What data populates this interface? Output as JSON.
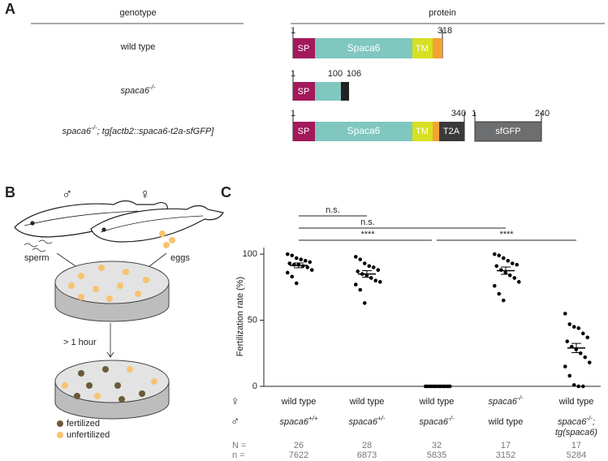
{
  "panel_labels": [
    "A",
    "B",
    "C"
  ],
  "panel_a": {
    "headers": [
      "genotype",
      "protein"
    ],
    "rows": [
      {
        "genotype": [
          {
            "t": "wild type"
          }
        ],
        "positions": [
          "1",
          "318"
        ],
        "segments": [
          "SP",
          "Spaca6",
          "TM"
        ]
      },
      {
        "genotype": [
          {
            "t": "spaca6",
            "i": true
          },
          {
            "t": "-/-",
            "i": true,
            "sup": true
          }
        ],
        "positions": [
          "1",
          "100",
          "106"
        ],
        "segments": [
          "SP"
        ]
      },
      {
        "genotype": [
          {
            "t": "spaca6",
            "i": true
          },
          {
            "t": "-/-",
            "i": true,
            "sup": true
          },
          {
            "t": "; tg[actb2::spaca6-t2a-sfGFP]",
            "i": true
          }
        ],
        "positions": [
          "1",
          "340",
          "1",
          "240"
        ],
        "segments": [
          "SP",
          "Spaca6",
          "TM",
          "T2A",
          "sfGFP"
        ]
      }
    ]
  },
  "panel_b": {
    "male": "♂",
    "female": "♀",
    "sperm": "sperm",
    "eggs": "eggs",
    "time": "> 1 hour",
    "legend": [
      "fertilized",
      "unfertilized"
    ]
  },
  "chart_data": {
    "type": "dot",
    "y_label": "Fertilization rate (%)",
    "ylim": [
      0,
      105
    ],
    "yticks": [
      0,
      50,
      100
    ],
    "color": "#000000",
    "series": [
      {
        "points": [
          100,
          99,
          97,
          96,
          95,
          94,
          93,
          92,
          92,
          91,
          90,
          88,
          86,
          83,
          78
        ],
        "mean": 91.5,
        "error": 1.8
      },
      {
        "points": [
          98,
          96,
          93,
          91,
          90,
          88,
          87,
          85,
          84,
          82,
          80,
          79,
          77,
          73,
          63
        ],
        "mean": 85,
        "error": 2.5
      },
      {
        "points": [
          0,
          0,
          0,
          0,
          0,
          0,
          0,
          0,
          0,
          0,
          0,
          0
        ],
        "mean": 0,
        "error": 0
      },
      {
        "points": [
          100,
          99,
          97,
          95,
          93,
          92,
          91,
          88,
          86,
          84,
          82,
          79,
          76,
          70,
          65
        ],
        "mean": 87.5,
        "error": 2.8
      },
      {
        "points": [
          55,
          47,
          45,
          44,
          40,
          37,
          34,
          30,
          28,
          25,
          22,
          18,
          15,
          8,
          1,
          0,
          0
        ],
        "mean": 29,
        "error": 3.5
      }
    ],
    "female_symbol": "♀",
    "male_symbol": "♂",
    "female_labels": [
      [
        {
          "t": "wild type"
        }
      ],
      [
        {
          "t": "wild type"
        }
      ],
      [
        {
          "t": "wild type"
        }
      ],
      [
        {
          "t": "spaca6",
          "i": true
        },
        {
          "t": "-/-",
          "i": true,
          "sup": true
        }
      ],
      [
        {
          "t": "wild type"
        }
      ]
    ],
    "male_labels": [
      [
        [
          {
            "t": "spaca6",
            "i": true
          },
          {
            "t": "+/+",
            "i": true,
            "sup": true
          }
        ]
      ],
      [
        [
          {
            "t": "spaca6",
            "i": true
          },
          {
            "t": "+/-",
            "i": true,
            "sup": true
          }
        ]
      ],
      [
        [
          {
            "t": "spaca6",
            "i": true
          },
          {
            "t": "-/-",
            "i": true,
            "sup": true
          }
        ]
      ],
      [
        [
          {
            "t": "wild type"
          }
        ]
      ],
      [
        [
          {
            "t": "spaca6",
            "i": true
          },
          {
            "t": "-/-",
            "i": true,
            "sup": true
          },
          {
            "t": ";",
            "i": true
          }
        ],
        [
          {
            "t": "tg(spaca6)",
            "i": true
          }
        ]
      ]
    ],
    "N_label": "N =",
    "n_label": "n =",
    "N": [
      "26",
      "28",
      "32",
      "17",
      "17"
    ],
    "n": [
      "7622",
      "6873",
      "5835",
      "3152",
      "5284"
    ],
    "significance": [
      {
        "from": 0,
        "to": 1,
        "label": "n.s."
      },
      {
        "from": 0,
        "to": 3,
        "label": "n.s."
      },
      {
        "from": 0,
        "to": 2,
        "label": "****"
      },
      {
        "from": 2,
        "to": 4,
        "label": "****"
      }
    ]
  }
}
